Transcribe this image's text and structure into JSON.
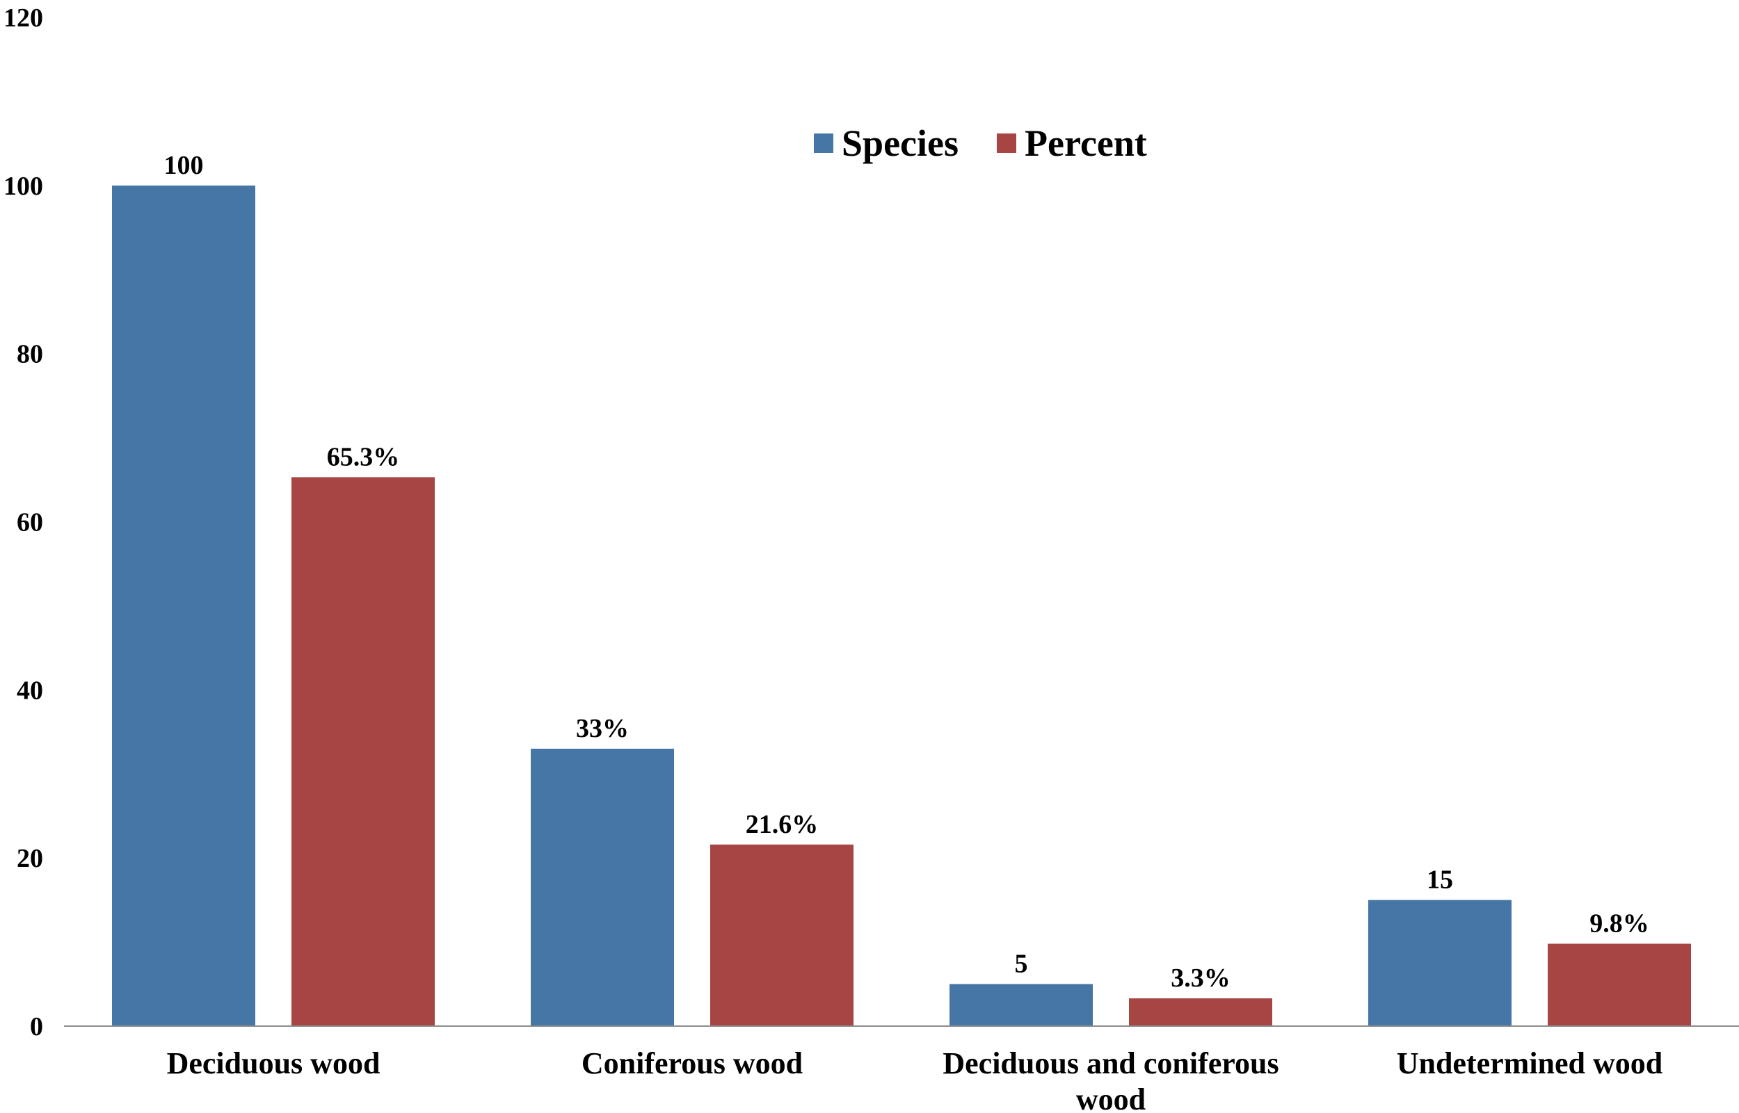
{
  "chart_data": {
    "type": "bar",
    "title": "",
    "xlabel": "",
    "ylabel": "",
    "ylim": [
      0,
      120
    ],
    "yticks": [
      0,
      20,
      40,
      60,
      80,
      100,
      120
    ],
    "grid": false,
    "legend_position": "top-center",
    "categories": [
      "Deciduous wood",
      "Coniferous wood",
      "Deciduous and coniferous wood",
      "Undetermined wood"
    ],
    "category_lines": [
      [
        "Deciduous wood"
      ],
      [
        "Coniferous wood"
      ],
      [
        "Deciduous and coniferous",
        "wood"
      ],
      [
        "Undetermined wood"
      ]
    ],
    "series": [
      {
        "name": "Species",
        "color": "#4676A5",
        "values": [
          100,
          33,
          5,
          15
        ],
        "labels": [
          "100",
          "33%",
          "5",
          "15"
        ]
      },
      {
        "name": "Percent",
        "color": "#A64544",
        "values": [
          65.3,
          21.6,
          3.3,
          9.8
        ],
        "labels": [
          "65.3%",
          "21.6%",
          "3.3%",
          "9.8%"
        ]
      }
    ]
  }
}
